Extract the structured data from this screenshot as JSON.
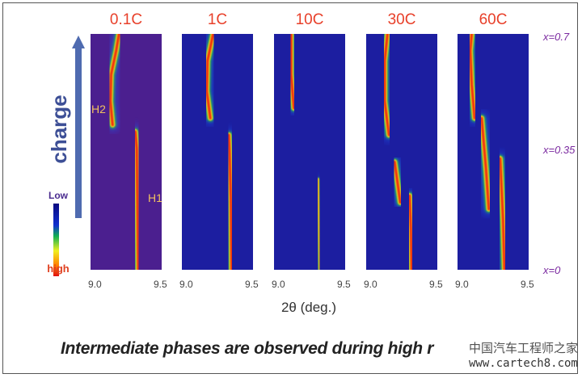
{
  "chart_data": {
    "type": "heatmap",
    "xlabel": "2θ (deg.)",
    "x_range": [
      9.0,
      9.5
    ],
    "x_ticks": [
      "9.0",
      "9.5"
    ],
    "y_label": "charge",
    "y_ticks": [
      "x=0",
      "x=0.35",
      "x=0.7"
    ],
    "y_range": [
      0,
      0.7
    ],
    "colorbar": {
      "low": "Low",
      "high": "high"
    },
    "phase_labels": [
      "H1",
      "H2"
    ],
    "panels": [
      {
        "title": "0.1C",
        "background": "#4b1f8f",
        "traces": [
          {
            "name": "H1",
            "points": [
              [
                9.335,
                0
              ],
              [
                9.33,
                0.2
              ],
              [
                9.325,
                0.36
              ],
              [
                9.315,
                0.41
              ]
            ]
          },
          {
            "name": "H2",
            "points": [
              [
                9.155,
                0.43
              ],
              [
                9.14,
                0.5
              ],
              [
                9.145,
                0.58
              ],
              [
                9.18,
                0.65
              ],
              [
                9.2,
                0.7
              ]
            ]
          }
        ]
      },
      {
        "title": "1C",
        "background": "#1c1ea0",
        "traces": [
          {
            "name": "H1",
            "points": [
              [
                9.35,
                0
              ],
              [
                9.345,
                0.2
              ],
              [
                9.335,
                0.35
              ],
              [
                9.33,
                0.4
              ]
            ]
          },
          {
            "name": "H2",
            "points": [
              [
                9.2,
                0.45
              ],
              [
                9.175,
                0.53
              ],
              [
                9.18,
                0.62
              ],
              [
                9.22,
                0.7
              ]
            ]
          }
        ]
      },
      {
        "title": "10C",
        "background": "#1c1ea0",
        "traces": [
          {
            "name": "H1",
            "points": [
              [
                9.32,
                0
              ],
              [
                9.315,
                0.15
              ],
              [
                9.31,
                0.27
              ]
            ]
          },
          {
            "name": "H2",
            "points": [
              [
                9.14,
                0.48
              ],
              [
                9.12,
                0.58
              ],
              [
                9.12,
                0.7
              ]
            ]
          }
        ]
      },
      {
        "title": "30C",
        "background": "#1c1ea0",
        "traces": [
          {
            "name": "H1",
            "points": [
              [
                9.32,
                0
              ],
              [
                9.315,
                0.12
              ],
              [
                9.305,
                0.22
              ]
            ]
          },
          {
            "name": "intermediate",
            "points": [
              [
                9.24,
                0.2
              ],
              [
                9.22,
                0.26
              ],
              [
                9.2,
                0.32
              ]
            ]
          },
          {
            "name": "H2",
            "points": [
              [
                9.16,
                0.4
              ],
              [
                9.13,
                0.5
              ],
              [
                9.13,
                0.62
              ],
              [
                9.15,
                0.7
              ]
            ]
          }
        ]
      },
      {
        "title": "60C",
        "background": "#1c1ea0",
        "traces": [
          {
            "name": "H1",
            "points": [
              [
                9.33,
                0
              ],
              [
                9.32,
                0.15
              ],
              [
                9.3,
                0.33
              ]
            ]
          },
          {
            "name": "intermediate",
            "points": [
              [
                9.22,
                0.18
              ],
              [
                9.2,
                0.3
              ],
              [
                9.17,
                0.45
              ]
            ]
          },
          {
            "name": "H2",
            "points": [
              [
                9.12,
                0.45
              ],
              [
                9.1,
                0.55
              ],
              [
                9.09,
                0.65
              ],
              [
                9.1,
                0.7
              ]
            ]
          }
        ]
      }
    ]
  },
  "caption": "Intermediate phases are observed during high r",
  "watermark": {
    "line1": "中国汽车工程师之家",
    "line2": "www.cartech8.com"
  }
}
